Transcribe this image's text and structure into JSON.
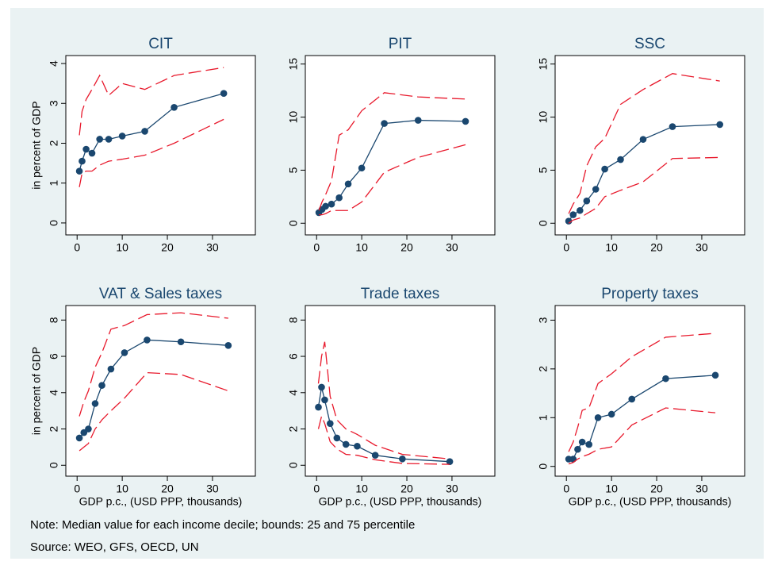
{
  "chart_data": [
    {
      "type": "line",
      "title": "CIT",
      "ylabel": "in percent of GDP",
      "x": [
        0.5,
        1.1,
        2,
        3.3,
        5,
        7,
        10,
        15,
        21.5,
        32.5
      ],
      "series": [
        {
          "color": "#1a476f",
          "style": "solid-markers",
          "values": [
            1.3,
            1.55,
            1.85,
            1.75,
            2.1,
            2.1,
            2.18,
            2.3,
            2.9,
            3.25
          ]
        },
        {
          "color": "#e8192c",
          "style": "dashed",
          "values": [
            2.2,
            2.8,
            3.1,
            3.35,
            3.7,
            3.2,
            3.5,
            3.35,
            3.7,
            3.9
          ]
        },
        {
          "color": "#e8192c",
          "style": "dashed",
          "values": [
            0.9,
            1.25,
            1.3,
            1.3,
            1.45,
            1.55,
            1.6,
            1.7,
            2.0,
            2.6
          ]
        }
      ],
      "xlim": [
        -2.5,
        39.5
      ],
      "ylim": [
        -0.3,
        4.2
      ],
      "xticks": [
        0,
        10,
        20,
        30
      ],
      "yticks": [
        0,
        1,
        2,
        3,
        4
      ]
    },
    {
      "type": "line",
      "title": "PIT",
      "x": [
        0.5,
        1.2,
        2,
        3.3,
        5,
        7,
        10,
        15,
        22.5,
        33
      ],
      "series": [
        {
          "color": "#1a476f",
          "style": "solid-markers",
          "values": [
            1,
            1.3,
            1.6,
            1.8,
            2.4,
            3.7,
            5.2,
            9.4,
            9.7,
            9.6
          ]
        },
        {
          "color": "#e8192c",
          "style": "dashed",
          "values": [
            1.2,
            2,
            2.7,
            4,
            8.3,
            8.8,
            10.6,
            12.3,
            11.9,
            11.7
          ]
        },
        {
          "color": "#e8192c",
          "style": "dashed",
          "values": [
            0.8,
            0.8,
            0.9,
            1.2,
            1.2,
            1.2,
            2,
            4.8,
            6.2,
            7.4
          ]
        }
      ],
      "xlim": [
        -2.5,
        39.5
      ],
      "ylim": [
        -1.1,
        15.8
      ],
      "xticks": [
        0,
        10,
        20,
        30
      ],
      "yticks": [
        0,
        5,
        10,
        15
      ]
    },
    {
      "type": "line",
      "title": "SSC",
      "x": [
        0.5,
        1.5,
        3,
        4.5,
        6.5,
        8.5,
        12,
        17,
        23.5,
        34
      ],
      "series": [
        {
          "color": "#1a476f",
          "style": "solid-markers",
          "values": [
            0.2,
            0.8,
            1.2,
            2.1,
            3.2,
            5.1,
            6,
            7.9,
            9.1,
            9.3
          ]
        },
        {
          "color": "#e8192c",
          "style": "dashed",
          "values": [
            0.9,
            1.8,
            2.8,
            5.4,
            7.2,
            8,
            11.2,
            12.6,
            14.1,
            13.4
          ]
        },
        {
          "color": "#e8192c",
          "style": "dashed",
          "values": [
            0,
            0.3,
            0.5,
            0.9,
            1.4,
            2.5,
            3.1,
            3.9,
            6.1,
            6.2
          ]
        }
      ],
      "xlim": [
        -2.5,
        39.5
      ],
      "ylim": [
        -1.1,
        15.8
      ],
      "xticks": [
        0,
        10,
        20,
        30
      ],
      "yticks": [
        0,
        5,
        10,
        15
      ]
    },
    {
      "type": "line",
      "title": "VAT & Sales taxes",
      "ylabel": "in percent of GDP",
      "xlabel": "GDP p.c., (USD PPP, thousands)",
      "x": [
        0.5,
        1.5,
        2.5,
        4,
        5.5,
        7.5,
        10.5,
        15.5,
        23,
        33.5
      ],
      "series": [
        {
          "color": "#1a476f",
          "style": "solid-markers",
          "values": [
            1.5,
            1.8,
            2,
            3.4,
            4.4,
            5.3,
            6.2,
            6.9,
            6.8,
            6.6
          ]
        },
        {
          "color": "#e8192c",
          "style": "dashed",
          "values": [
            2.7,
            3.5,
            4.1,
            5.4,
            6.2,
            7.5,
            7.7,
            8.3,
            8.4,
            8.1
          ]
        },
        {
          "color": "#e8192c",
          "style": "dashed",
          "values": [
            0.8,
            1,
            1.2,
            2,
            2.5,
            3,
            3.7,
            5.1,
            5,
            4.1
          ]
        }
      ],
      "xlim": [
        -2.5,
        39.5
      ],
      "ylim": [
        -0.6,
        8.8
      ],
      "xticks": [
        0,
        10,
        20,
        30
      ],
      "yticks": [
        0,
        2,
        4,
        6,
        8
      ]
    },
    {
      "type": "line",
      "title": "Trade taxes",
      "xlabel": "GDP p.c., (USD PPP, thousands)",
      "x": [
        0.4,
        1.1,
        1.8,
        3,
        4.5,
        6.5,
        9,
        13,
        19,
        29.5
      ],
      "series": [
        {
          "color": "#1a476f",
          "style": "solid-markers",
          "values": [
            3.2,
            4.3,
            3.6,
            2.3,
            1.5,
            1.15,
            1.05,
            0.55,
            0.35,
            0.2
          ]
        },
        {
          "color": "#e8192c",
          "style": "dashed",
          "values": [
            4.5,
            6,
            6.8,
            3.8,
            2.5,
            2,
            1.7,
            1.1,
            0.6,
            0.35
          ]
        },
        {
          "color": "#e8192c",
          "style": "dashed",
          "values": [
            2,
            2.7,
            2.3,
            1.3,
            0.9,
            0.6,
            0.55,
            0.3,
            0.1,
            0.05
          ]
        }
      ],
      "xlim": [
        -2.5,
        39.5
      ],
      "ylim": [
        -0.6,
        8.8
      ],
      "xticks": [
        0,
        10,
        20,
        30
      ],
      "yticks": [
        0,
        2,
        4,
        6,
        8
      ]
    },
    {
      "type": "line",
      "title": "Property taxes",
      "xlabel": "GDP p.c., (USD PPP, thousands)",
      "x": [
        0.5,
        1.5,
        2.5,
        3.5,
        5,
        7,
        10,
        14.5,
        22,
        33
      ],
      "series": [
        {
          "color": "#1a476f",
          "style": "solid-markers",
          "values": [
            0.15,
            0.15,
            0.35,
            0.5,
            0.45,
            1,
            1.07,
            1.38,
            1.8,
            1.87
          ]
        },
        {
          "color": "#e8192c",
          "style": "dashed",
          "values": [
            0.3,
            0.5,
            0.8,
            1.15,
            1.2,
            1.7,
            1.9,
            2.25,
            2.65,
            2.73
          ]
        },
        {
          "color": "#e8192c",
          "style": "dashed",
          "values": [
            0.05,
            0.08,
            0.15,
            0.2,
            0.25,
            0.35,
            0.4,
            0.85,
            1.2,
            1.1
          ]
        }
      ],
      "xlim": [
        -2.5,
        39.5
      ],
      "ylim": [
        -0.2,
        3.3
      ],
      "xticks": [
        0,
        10,
        20,
        30
      ],
      "yticks": [
        0,
        1,
        2,
        3
      ]
    }
  ],
  "note": "Note: Median value for each income decile; bounds: 25 and 75 percentile",
  "source": "Source: WEO, GFS, OECD, UN"
}
